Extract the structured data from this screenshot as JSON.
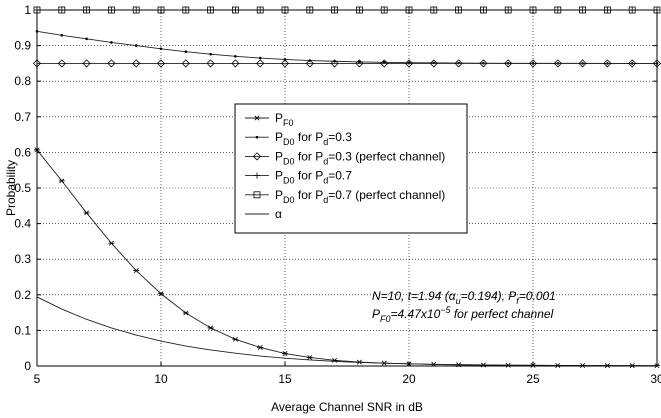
{
  "chart_data": {
    "type": "line",
    "title": "",
    "xlabel": "Average Channel SNR in dB",
    "ylabel": "Probability",
    "xlim": [
      5,
      30
    ],
    "ylim": [
      0,
      1
    ],
    "xticks": [
      5,
      10,
      15,
      20,
      25,
      30
    ],
    "yticks": [
      0,
      0.1,
      0.2,
      0.3,
      0.4,
      0.5,
      0.6,
      0.7,
      0.8,
      0.9,
      1
    ],
    "grid": true,
    "legend_position": "center-left",
    "x": [
      5,
      6,
      7,
      8,
      9,
      10,
      11,
      12,
      13,
      14,
      15,
      16,
      17,
      18,
      19,
      20,
      21,
      22,
      23,
      24,
      25,
      26,
      27,
      28,
      29,
      30
    ],
    "series": [
      {
        "name": "P_F0",
        "legend_parts": [
          [
            "P",
            "",
            ""
          ],
          [
            "F0",
            "sub",
            ""
          ]
        ],
        "marker": "asterisk",
        "values": [
          0.607,
          0.52,
          0.43,
          0.345,
          0.268,
          0.203,
          0.149,
          0.107,
          0.075,
          0.052,
          0.035,
          0.024,
          0.016,
          0.011,
          0.008,
          0.006,
          0.0045,
          0.0035,
          0.0028,
          0.0022,
          0.0018,
          0.0015,
          0.0013,
          0.0011,
          0.001,
          0.0009
        ]
      },
      {
        "name": "P_D0 for P_d=0.3",
        "legend_parts": [
          [
            "P",
            "",
            ""
          ],
          [
            "D0",
            "sub",
            ""
          ],
          [
            " for ",
            "",
            ""
          ],
          [
            "P",
            "",
            ""
          ],
          [
            "d",
            "sub",
            ""
          ],
          [
            "=0.3",
            "",
            ""
          ]
        ],
        "marker": "dot",
        "values": [
          0.94,
          0.929,
          0.919,
          0.909,
          0.9,
          0.891,
          0.883,
          0.876,
          0.87,
          0.865,
          0.861,
          0.858,
          0.856,
          0.854,
          0.853,
          0.852,
          0.8515,
          0.851,
          0.8505,
          0.8503,
          0.8502,
          0.8501,
          0.8501,
          0.85,
          0.85,
          0.85
        ]
      },
      {
        "name": "P_D0 for P_d=0.3 (perfect channel)",
        "legend_parts": [
          [
            "P",
            "",
            ""
          ],
          [
            "D0",
            "sub",
            ""
          ],
          [
            " for ",
            "",
            ""
          ],
          [
            "P",
            "",
            ""
          ],
          [
            "d",
            "sub",
            ""
          ],
          [
            "=0.3 (perfect channel)",
            "",
            ""
          ]
        ],
        "marker": "diamond",
        "values": [
          0.85,
          0.85,
          0.85,
          0.85,
          0.85,
          0.85,
          0.85,
          0.85,
          0.85,
          0.85,
          0.85,
          0.85,
          0.85,
          0.85,
          0.85,
          0.85,
          0.85,
          0.85,
          0.85,
          0.85,
          0.85,
          0.85,
          0.85,
          0.85,
          0.85,
          0.85
        ]
      },
      {
        "name": "P_D0 for P_d=0.7",
        "legend_parts": [
          [
            "P",
            "",
            ""
          ],
          [
            "D0",
            "sub",
            ""
          ],
          [
            " for ",
            "",
            ""
          ],
          [
            "P",
            "",
            ""
          ],
          [
            "d",
            "sub",
            ""
          ],
          [
            "=0.7",
            "",
            ""
          ]
        ],
        "marker": "plus",
        "values": [
          1,
          1,
          1,
          1,
          1,
          1,
          1,
          1,
          1,
          1,
          1,
          1,
          1,
          1,
          1,
          1,
          1,
          1,
          1,
          1,
          1,
          1,
          1,
          1,
          1,
          1
        ]
      },
      {
        "name": "P_D0 for P_d=0.7 (perfect channel)",
        "legend_parts": [
          [
            "P",
            "",
            ""
          ],
          [
            "D0",
            "sub",
            ""
          ],
          [
            " for ",
            "",
            ""
          ],
          [
            "P",
            "",
            ""
          ],
          [
            "d",
            "sub",
            ""
          ],
          [
            "=0.7 (perfect channel)",
            "",
            ""
          ]
        ],
        "marker": "square",
        "values": [
          1,
          1,
          1,
          1,
          1,
          1,
          1,
          1,
          1,
          1,
          1,
          1,
          1,
          1,
          1,
          1,
          1,
          1,
          1,
          1,
          1,
          1,
          1,
          1,
          1,
          1
        ]
      },
      {
        "name": "α",
        "legend_parts": [
          [
            "α",
            "",
            ""
          ]
        ],
        "marker": "none",
        "values": [
          0.194,
          0.16,
          0.131,
          0.107,
          0.087,
          0.07,
          0.056,
          0.045,
          0.036,
          0.028,
          0.022,
          0.017,
          0.013,
          0.01,
          0.008,
          0.006,
          0.0047,
          0.0037,
          0.0029,
          0.0023,
          0.0018,
          0.0014,
          0.0011,
          0.0009,
          0.0007,
          0.0006
        ]
      }
    ],
    "annotations": [
      {
        "text": "N=10, t=1.94 (α_u=0.194), P_f=0.001",
        "parts": [
          [
            "N=10, t=1.94 (α",
            "",
            ""
          ],
          [
            "u",
            "sub",
            ""
          ],
          [
            "=0.194), P",
            "",
            ""
          ],
          [
            "f",
            "sub",
            ""
          ],
          [
            "=0.001",
            "",
            ""
          ]
        ]
      },
      {
        "text": "P_F0=4.47x10^-5 for perfect channel",
        "parts": [
          [
            "P",
            "",
            ""
          ],
          [
            "F0",
            "sub",
            ""
          ],
          [
            "=4.47x10",
            "",
            ""
          ],
          [
            "−5",
            "sup",
            ""
          ],
          [
            " for perfect channel",
            "",
            ""
          ]
        ]
      }
    ]
  }
}
